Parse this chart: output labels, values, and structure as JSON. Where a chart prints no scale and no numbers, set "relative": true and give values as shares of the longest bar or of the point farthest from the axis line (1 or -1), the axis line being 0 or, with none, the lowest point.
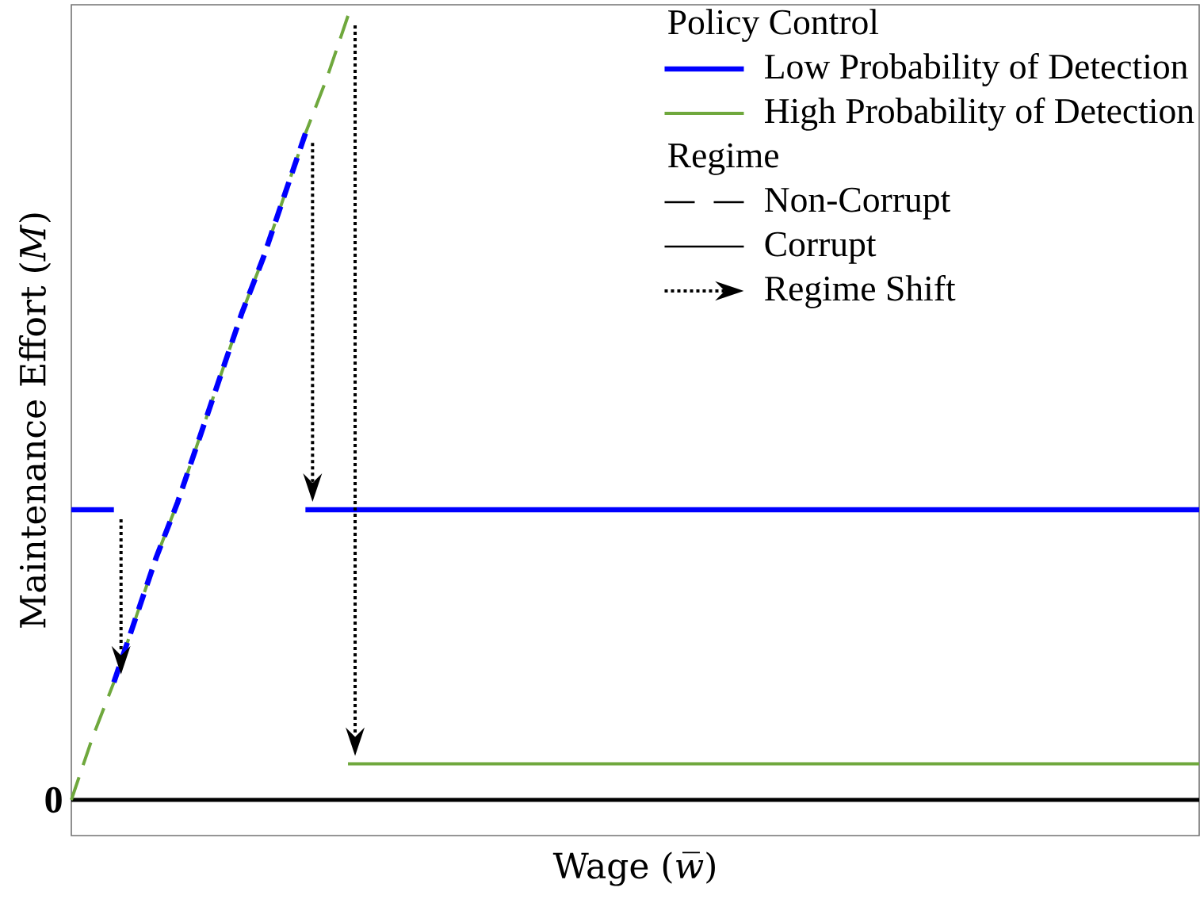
{
  "chart_data": {
    "type": "line",
    "relative": true,
    "xlabel": "Wage (*w̅*)",
    "ylabel": "Maintenance Effort (*M*)",
    "legend_title": "Policy Control",
    "legend": "top right",
    "marker": "none",
    "categories": [
      null,
      null,
      null,
      null,
      null,
      null,
      null,
      null,
      null,
      null,
      null,
      null,
      null,
      null,
      null,
      null,
      null,
      null,
      null,
      null,
      null,
      null,
      null,
      null,
      null,
      null,
      null,
      null,
      null,
      null,
      null,
      null,
      null,
      null,
      null,
      null,
      null,
      null,
      null,
      null,
      null,
      null,
      null,
      null,
      null,
      null,
      null,
      null,
      null,
      null,
      null,
      null,
      null,
      null
    ],
    "series": [
      {
        "name": "Low Probability of Detection",
        "color": "#0000ff",
        "line_style": "solid",
        "values": [
          0.37,
          0.37,
          0.37,
          null,
          null,
          null,
          null,
          null,
          null,
          null,
          null,
          0.37,
          0.37,
          0.37,
          0.37,
          0.37,
          0.37,
          0.37,
          0.37,
          0.37,
          0.37,
          0.37,
          0.37,
          0.37,
          0.37,
          0.37,
          0.37,
          0.37,
          0.37,
          0.37,
          0.37,
          0.37,
          0.37,
          0.37,
          0.37,
          0.37,
          0.37,
          0.37,
          0.37,
          0.37,
          0.37,
          0.37,
          0.37,
          0.37,
          0.37,
          0.37,
          0.37,
          0.37,
          0.37,
          0.37,
          0.37,
          0.37,
          0.37,
          0.37
        ]
      },
      {
        "name": "High Probability of Detection",
        "color": "#6fa83d",
        "line_style": "solid",
        "values": [
          null,
          null,
          null,
          null,
          null,
          null,
          null,
          null,
          null,
          null,
          null,
          null,
          null,
          0.046,
          0.046,
          0.046,
          0.046,
          0.046,
          0.046,
          0.046,
          0.046,
          0.046,
          0.046,
          0.046,
          0.046,
          0.046,
          0.046,
          0.046,
          0.046,
          0.046,
          0.046,
          0.046,
          0.046,
          0.046,
          0.046,
          0.046,
          0.046,
          0.046,
          0.046,
          0.046,
          0.046,
          0.046,
          0.046,
          0.046,
          0.046,
          0.046,
          0.046,
          0.046,
          0.046,
          0.046,
          0.046,
          0.046,
          0.046,
          0.046
        ]
      },
      {
        "color": "#6fa83d",
        "line_style": "dashed",
        "values": [
          0,
          0.08,
          0.15,
          0.23,
          0.31,
          0.38,
          0.46,
          0.54,
          0.62,
          0.69,
          0.77,
          0.85,
          0.92,
          1,
          null,
          null,
          null,
          null,
          null,
          null,
          null,
          null,
          null,
          null,
          null,
          null,
          null,
          null,
          null,
          null,
          null,
          null,
          null,
          null,
          null,
          null,
          null,
          null,
          null,
          null,
          null,
          null,
          null,
          null,
          null,
          null,
          null,
          null,
          null,
          null,
          null,
          null,
          null,
          null
        ]
      },
      {
        "color": "#0000ff",
        "line_style": "dashed",
        "values": [
          null,
          null,
          0.15,
          0.23,
          0.31,
          0.38,
          0.46,
          0.54,
          0.62,
          0.69,
          0.77,
          0.85,
          null,
          null,
          null,
          null,
          null,
          null,
          null,
          null,
          null,
          null,
          null,
          null,
          null,
          null,
          null,
          null,
          null,
          null,
          null,
          null,
          null,
          null,
          null,
          null,
          null,
          null,
          null,
          null,
          null,
          null,
          null,
          null,
          null,
          null,
          null,
          null,
          null,
          null,
          null,
          null,
          null,
          null
        ]
      }
    ],
    "ref_lines": [
      {
        "axis": "y",
        "value": 0,
        "label": "0",
        "color": "#000000"
      }
    ],
    "annotations": [
      "Regime",
      "Non-Corrupt",
      "Corrupt",
      "Regime Shift"
    ]
  }
}
